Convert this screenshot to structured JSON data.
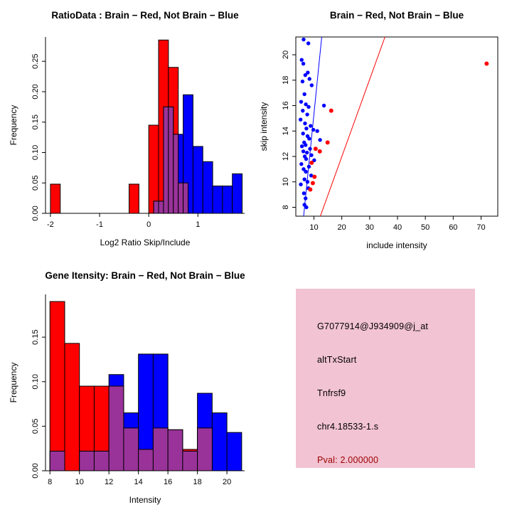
{
  "page": {
    "background": "#FFFFFF"
  },
  "colors": {
    "red": "#FF0000",
    "blue": "#0000FF",
    "overlap": "#993399",
    "axis": "#000000",
    "info_background": "#F2C3D2",
    "pval_color": "#990000"
  },
  "chart_data": [
    {
      "kind": "histogram",
      "type": "bar",
      "title": "RatioData : Brain − Red, Not Brain − Blue",
      "xlabel": "Log2 Ratio Skip/Include",
      "ylabel": "Frequency",
      "bin_start": -2,
      "bin_width": 0.2,
      "blue_offset": 0.1,
      "xlim": [
        -2.1,
        1.95
      ],
      "ylim": [
        0,
        0.29
      ],
      "xticks": [
        -2,
        -1,
        0,
        1
      ],
      "yticks": [
        0,
        0.05,
        0.1,
        0.15,
        0.2,
        0.25
      ],
      "ydec": 2,
      "series": [
        {
          "name": "Brain",
          "color_key": "red",
          "values": [
            0.048,
            0,
            0,
            0,
            0,
            0,
            0,
            0,
            0.048,
            0,
            0.145,
            0.285,
            0.24,
            0.05,
            0,
            0,
            0,
            0,
            0
          ]
        },
        {
          "name": "Not Brain",
          "color_key": "blue",
          "values": [
            0,
            0,
            0,
            0,
            0,
            0,
            0,
            0,
            0,
            0,
            0.02,
            0.175,
            0.13,
            0.195,
            0.11,
            0.085,
            0.045,
            0.045,
            0.065
          ]
        }
      ]
    },
    {
      "kind": "scatter",
      "type": "scatter",
      "title": "Brain − Red, Not Brain − Blue",
      "xlabel": "include intensity",
      "ylabel": "skip intensity",
      "xlim": [
        3.5,
        76
      ],
      "ylim": [
        7.3,
        21.4
      ],
      "xticks": [
        10,
        20,
        30,
        40,
        50,
        60,
        70
      ],
      "yticks": [
        8,
        10,
        12,
        14,
        16,
        18,
        20
      ],
      "series": [
        {
          "name": "Brain",
          "color_key": "red",
          "points": [
            [
              72.0,
              19.3
            ],
            [
              16.2,
              15.6
            ],
            [
              14.9,
              13.1
            ],
            [
              10.6,
              12.6
            ],
            [
              12.1,
              12.4
            ],
            [
              9.2,
              11.5
            ],
            [
              10.2,
              10.4
            ],
            [
              9.6,
              9.9
            ],
            [
              8.7,
              9.4
            ]
          ]
        },
        {
          "name": "Not Brain",
          "color_key": "blue",
          "points": [
            [
              6.3,
              21.2
            ],
            [
              8.0,
              20.9
            ],
            [
              5.6,
              19.6
            ],
            [
              6.2,
              19.3
            ],
            [
              7.8,
              18.6
            ],
            [
              6.9,
              18.4
            ],
            [
              8.4,
              18.1
            ],
            [
              5.9,
              17.9
            ],
            [
              9.2,
              17.6
            ],
            [
              6.6,
              16.9
            ],
            [
              5.4,
              16.3
            ],
            [
              7.1,
              16.1
            ],
            [
              8.1,
              15.9
            ],
            [
              13.6,
              16.0
            ],
            [
              6.0,
              15.6
            ],
            [
              7.6,
              15.3
            ],
            [
              5.2,
              14.9
            ],
            [
              6.8,
              14.6
            ],
            [
              8.8,
              14.4
            ],
            [
              7.3,
              14.2
            ],
            [
              9.8,
              14.1
            ],
            [
              11.2,
              14.0
            ],
            [
              6.1,
              13.8
            ],
            [
              7.7,
              13.6
            ],
            [
              8.3,
              13.4
            ],
            [
              12.2,
              13.3
            ],
            [
              6.5,
              13.1
            ],
            [
              7.0,
              12.9
            ],
            [
              5.7,
              12.8
            ],
            [
              8.6,
              12.6
            ],
            [
              6.2,
              12.4
            ],
            [
              7.5,
              12.3
            ],
            [
              9.1,
              12.1
            ],
            [
              6.7,
              12.0
            ],
            [
              7.2,
              11.8
            ],
            [
              10.1,
              11.7
            ],
            [
              5.5,
              11.4
            ],
            [
              8.2,
              11.2
            ],
            [
              6.3,
              11.0
            ],
            [
              7.1,
              10.8
            ],
            [
              9.0,
              10.5
            ],
            [
              6.6,
              10.2
            ],
            [
              7.7,
              10.0
            ],
            [
              5.3,
              9.8
            ],
            [
              8.0,
              9.5
            ],
            [
              6.4,
              9.1
            ],
            [
              7.0,
              8.7
            ],
            [
              6.6,
              8.2
            ],
            [
              7.3,
              8.0
            ]
          ]
        }
      ],
      "blue_line": {
        "x1": 6.3,
        "y1": 7.3,
        "x2": 12.8,
        "y2": 21.4
      },
      "red_line": {
        "x1": 12.3,
        "y1": 7.3,
        "x2": 35.5,
        "y2": 21.4
      }
    },
    {
      "kind": "histogram",
      "type": "bar",
      "title": "Gene Itensity: Brain − Red, Not Brain − Blue",
      "xlabel": "Intensity",
      "ylabel": "Frequency",
      "bin_start": 8,
      "bin_width": 1,
      "blue_offset": 0,
      "xlim": [
        7.7,
        21.2
      ],
      "ylim": [
        0,
        0.198
      ],
      "xticks": [
        8,
        10,
        12,
        14,
        16,
        18,
        20
      ],
      "yticks": [
        0,
        0.05,
        0.1,
        0.15
      ],
      "ydec": 2,
      "series": [
        {
          "name": "Brain",
          "color_key": "red",
          "values": [
            0.19,
            0.143,
            0.095,
            0.095,
            0.095,
            0.048,
            0.024,
            0.048,
            0.046,
            0.024,
            0.048,
            0,
            0
          ]
        },
        {
          "name": "Not Brain",
          "color_key": "blue",
          "values": [
            0.022,
            0,
            0.022,
            0.022,
            0.108,
            0.065,
            0.131,
            0.131,
            0.046,
            0.022,
            0.087,
            0.065,
            0.043
          ]
        }
      ]
    }
  ],
  "info_panel": {
    "lines": {
      "probe": "G7077914@J934909@j_at",
      "event": "altTxStart",
      "gene": "Tnfrsf9",
      "location": "chr4.18533-1.s",
      "pval": "Pval: 2.000000"
    }
  }
}
